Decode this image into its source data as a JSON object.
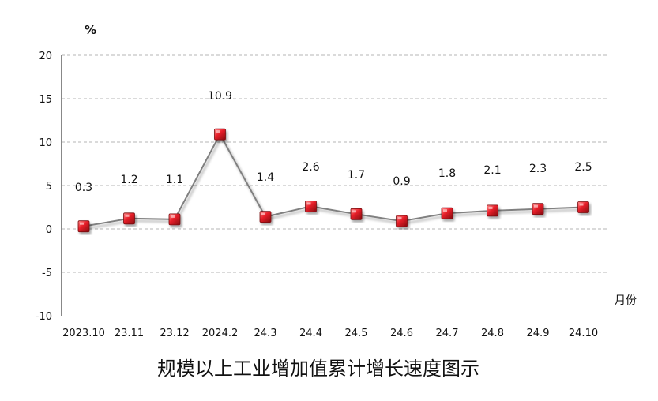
{
  "chart_data": {
    "type": "line",
    "title": "规模以上工业增加值累计增长速度图示",
    "xlabel": "月份",
    "ylabel": "%",
    "categories": [
      "2023.10",
      "23.11",
      "23.12",
      "2024.2",
      "24.3",
      "24.4",
      "24.5",
      "24.6",
      "24.7",
      "24.8",
      "24.9",
      "24.10"
    ],
    "series": [
      {
        "name": "规模以上工业增加值累计增长",
        "values": [
          0.3,
          1.2,
          1.1,
          10.9,
          1.4,
          2.6,
          1.7,
          0.9,
          1.8,
          2.1,
          2.3,
          2.5
        ]
      }
    ],
    "data_labels": [
      "0.3",
      "1.2",
      "1.1",
      "10.9",
      "1.4",
      "2.6",
      "1.7",
      "0.9",
      "1.8",
      "2.1",
      "2.3",
      "2.5"
    ],
    "ylim": [
      -10,
      20
    ],
    "yticks": [
      -10,
      -5,
      0,
      5,
      10,
      15,
      20
    ],
    "ytick_labels": [
      "-10",
      "-5",
      "0",
      "5",
      "10",
      "15",
      "20"
    ],
    "grid": true,
    "line_color": "#808080",
    "marker_color": "#e8202a",
    "grid_color": "#b4b4b4"
  }
}
